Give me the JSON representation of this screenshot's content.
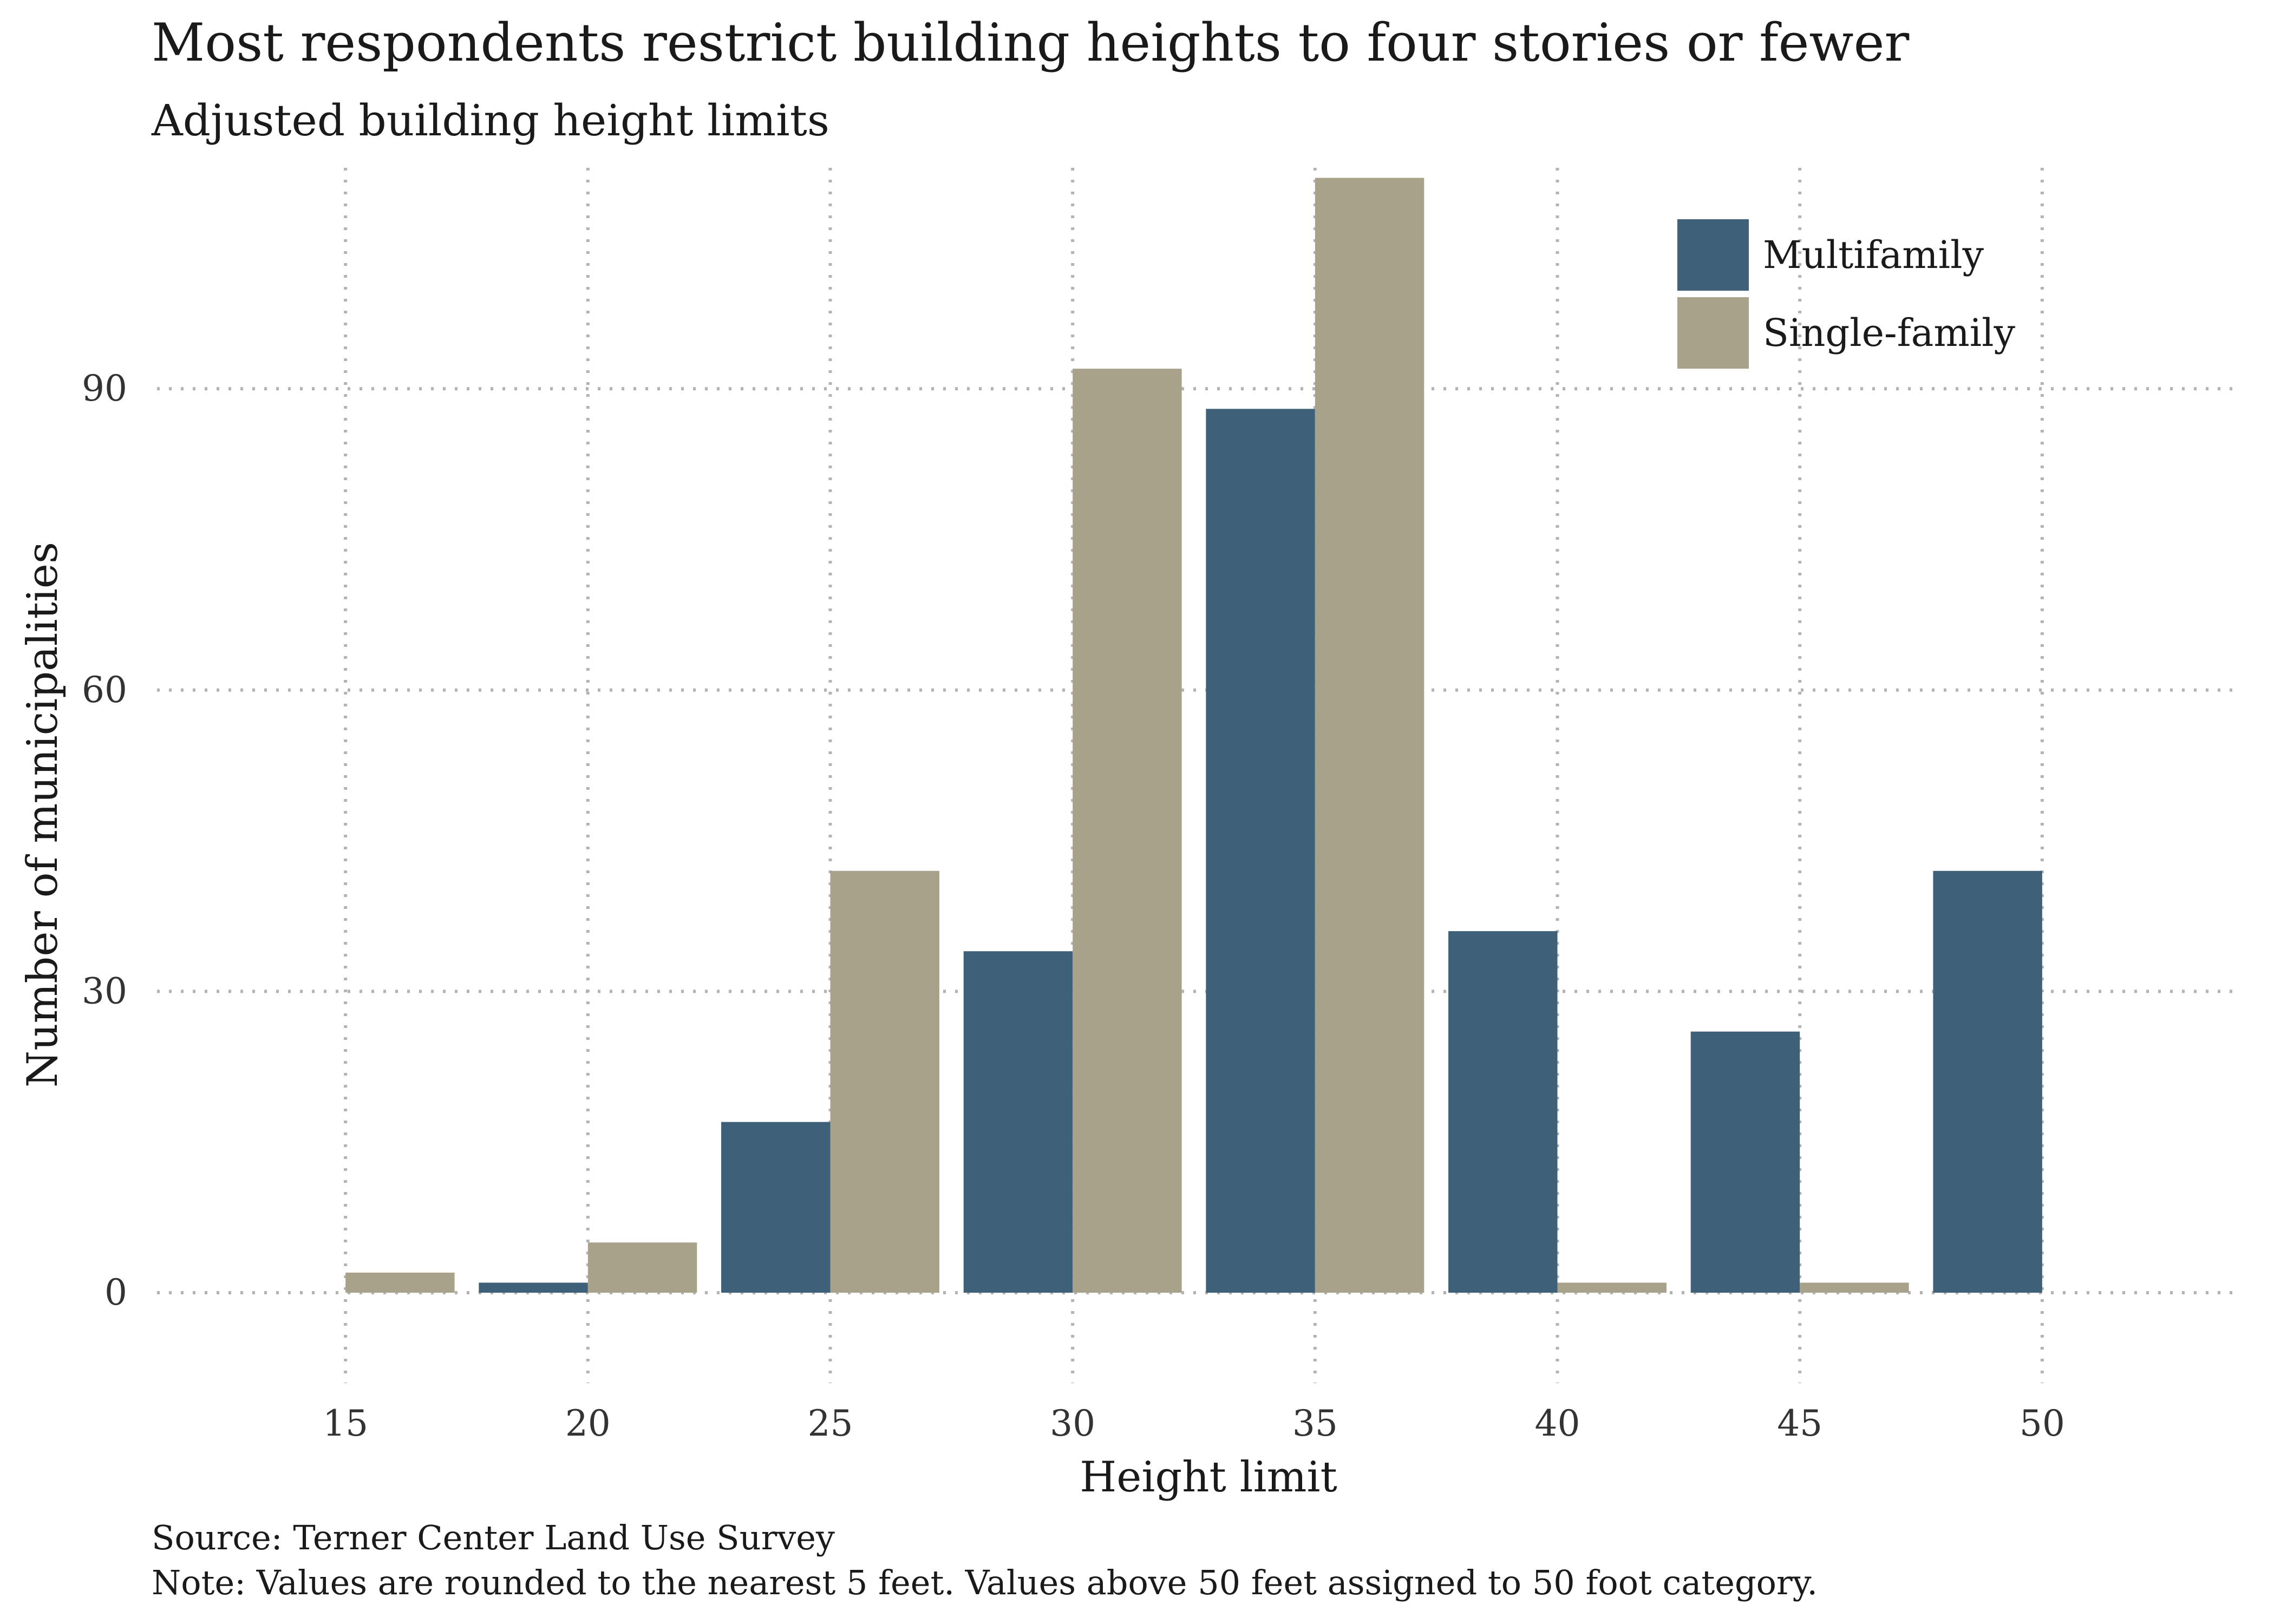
{
  "chart_data": {
    "type": "bar",
    "title": "Most respondents restrict building heights to four stories or fewer",
    "subtitle": "Adjusted building height limits",
    "xlabel": "Height limit",
    "ylabel": "Number of municipalities",
    "categories": [
      15,
      20,
      25,
      30,
      35,
      40,
      45,
      50
    ],
    "xlim": [
      11,
      54
    ],
    "ylim": [
      -9,
      112
    ],
    "yticks": [
      0,
      30,
      60,
      90
    ],
    "series": [
      {
        "name": "Multifamily",
        "color": "#3e6079",
        "values": [
          0,
          1,
          17,
          34,
          88,
          36,
          26,
          42
        ]
      },
      {
        "name": "Single-family",
        "color": "#a8a28b",
        "values": [
          2,
          5,
          42,
          92,
          111,
          1,
          1,
          0
        ]
      }
    ],
    "legend_position": "top-right",
    "grid": true,
    "grid_color": "#b3b3b3",
    "notes": [
      "Source: Terner Center Land Use Survey",
      "Note: Values are rounded to the nearest 5 feet. Values above 50 feet assigned to 50 foot category."
    ]
  }
}
